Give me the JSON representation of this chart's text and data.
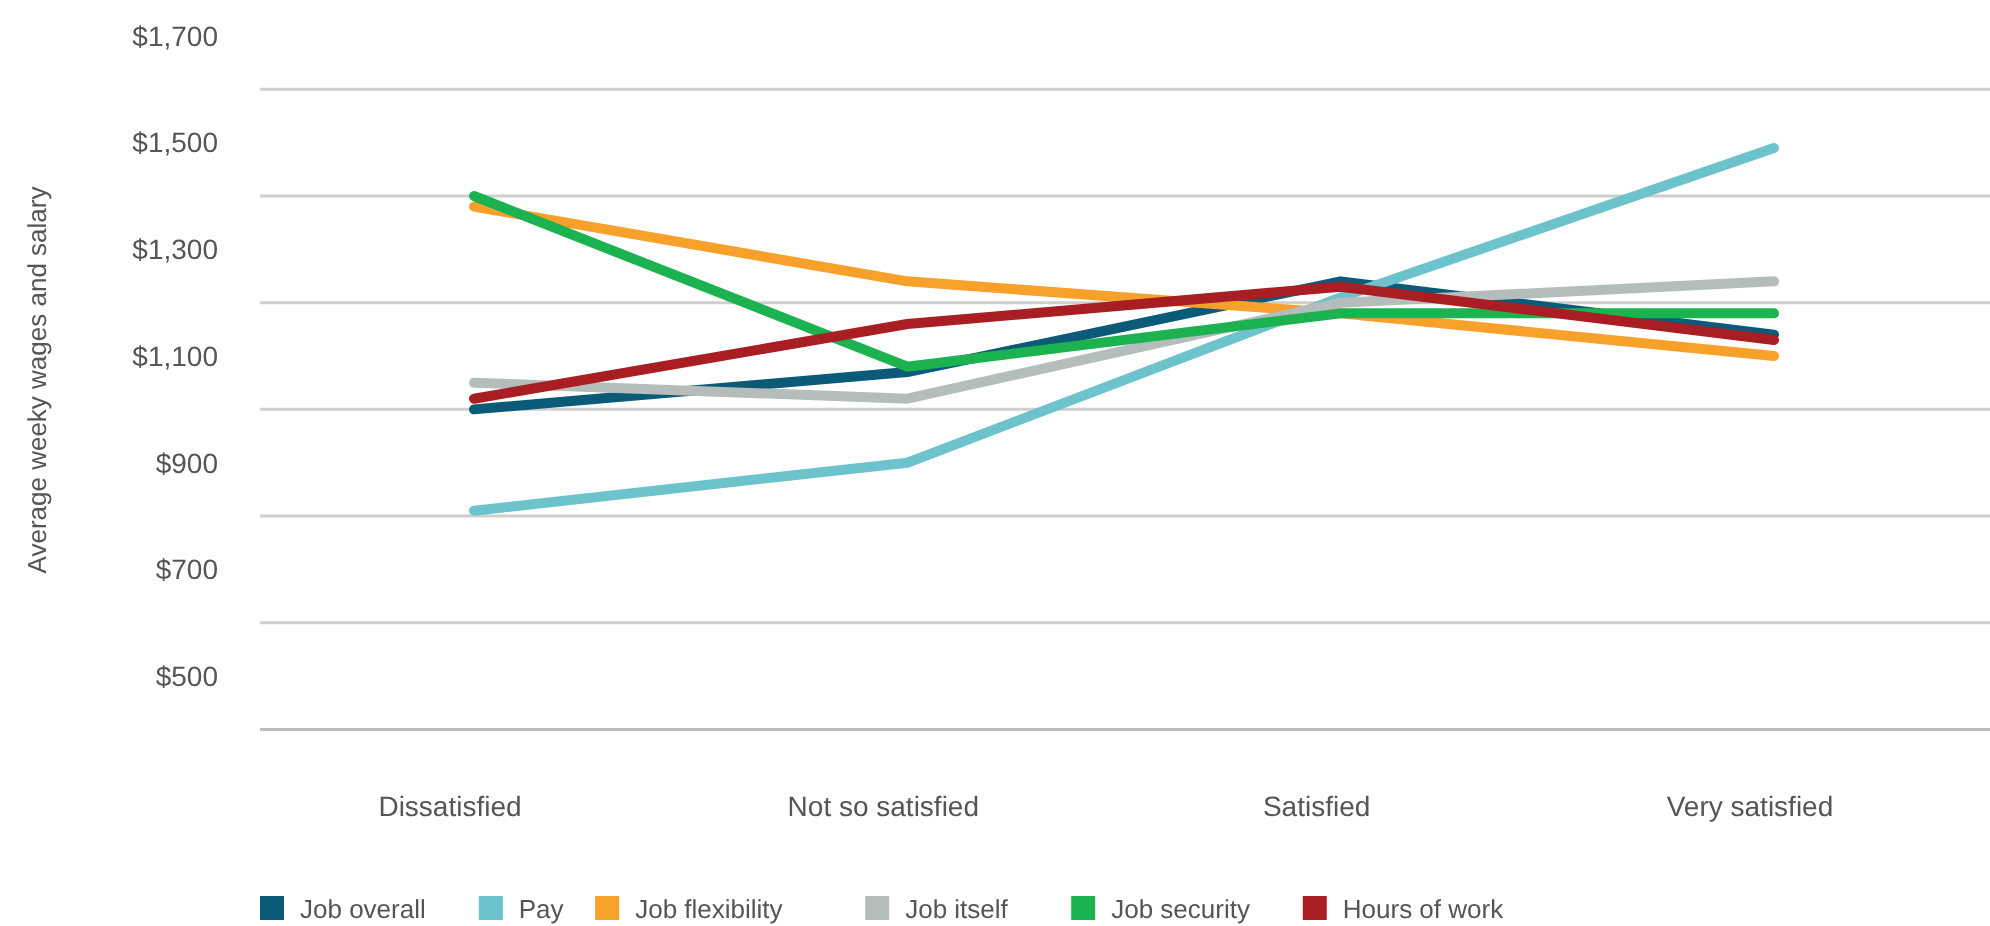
{
  "chart_data": {
    "type": "line",
    "ylabel": "Average weeky wages and salary",
    "categories": [
      "Dissatisfied",
      "Not so satisfied",
      "Satisfied",
      "Very satisfied"
    ],
    "series": [
      {
        "name": "Job overall",
        "color": "#0b5a78",
        "values": [
          1000,
          1070,
          1240,
          1140
        ]
      },
      {
        "name": "Pay",
        "color": "#6cc3cc",
        "values": [
          810,
          900,
          1210,
          1490
        ]
      },
      {
        "name": "Job flexibility",
        "color": "#f7a12b",
        "values": [
          1380,
          1240,
          1180,
          1100
        ]
      },
      {
        "name": "Job itself",
        "color": "#b5bcbc",
        "values": [
          1050,
          1020,
          1200,
          1240
        ]
      },
      {
        "name": "Job security",
        "color": "#1cb24f",
        "values": [
          1400,
          1080,
          1180,
          1180
        ]
      },
      {
        "name": "Hours of work",
        "color": "#a81e22",
        "values": [
          1020,
          1160,
          1230,
          1130
        ]
      }
    ],
    "ylim": [
      400,
      1700
    ],
    "yticks": [
      {
        "value": 400,
        "label": null
      },
      {
        "value": 500,
        "label": "$500"
      },
      {
        "value": 600,
        "label": null
      },
      {
        "value": 700,
        "label": "$700"
      },
      {
        "value": 800,
        "label": null
      },
      {
        "value": 900,
        "label": "$900"
      },
      {
        "value": 1000,
        "label": null
      },
      {
        "value": 1100,
        "label": "$1,100"
      },
      {
        "value": 1200,
        "label": null
      },
      {
        "value": 1300,
        "label": "$1,300"
      },
      {
        "value": 1400,
        "label": null
      },
      {
        "value": 1500,
        "label": "$1,500"
      },
      {
        "value": 1600,
        "label": null
      },
      {
        "value": 1700,
        "label": "$1,700"
      }
    ],
    "grid": "y",
    "legend": "bottom",
    "marker": "none",
    "line_style": "solid"
  }
}
